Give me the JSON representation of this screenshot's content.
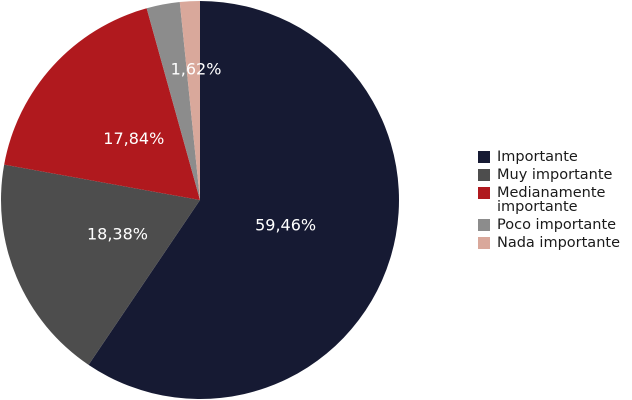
{
  "chart_data": {
    "type": "pie",
    "categories": [
      "Importante",
      "Muy importante",
      "Medianamente importante",
      "Poco importante",
      "Nada importante"
    ],
    "values": [
      59.46,
      18.38,
      17.84,
      2.7,
      1.62
    ],
    "value_labels": [
      "59,46%",
      "18,38%",
      "17,84%",
      null,
      "1,62%"
    ],
    "colors": [
      "#161a33",
      "#4d4d4d",
      "#b0191e",
      "#8c8c8c",
      "#d9a89b"
    ],
    "legend": "right"
  }
}
